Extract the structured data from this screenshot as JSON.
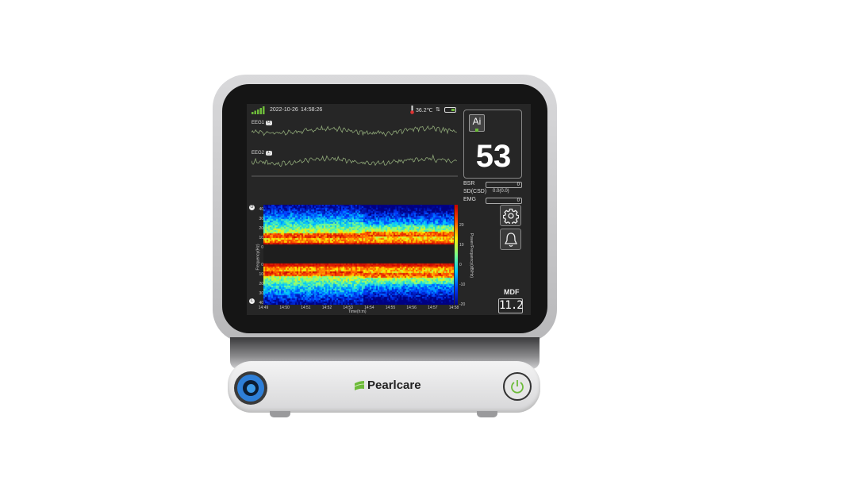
{
  "brand": {
    "name": "Pearlcare"
  },
  "status": {
    "date": "2022-10-26",
    "time": "14:58:26",
    "temperature": "36.2℃",
    "signal_icon": "signal-bars-icon",
    "battery_icon": "battery-icon"
  },
  "eeg": {
    "ch1": "EEG1",
    "ch1_badge": "Ⓞ",
    "ch2": "EEG2",
    "ch2_badge": "Ⓛ"
  },
  "index": {
    "ai_label": "Ai",
    "value": "53"
  },
  "params": {
    "bsr_label": "BSR",
    "bsr_value": "0",
    "sd_label": "SD(CSD)",
    "sd_value": "0.0(0.0)",
    "emg_label": "EMG",
    "emg_value": "0"
  },
  "mdf": {
    "label": "MDF",
    "value": "11.2"
  },
  "spectrogram": {
    "y_ticks_top": [
      "40",
      "30",
      "20",
      "10",
      "0"
    ],
    "y_ticks_bottom": [
      "0",
      "10",
      "20",
      "30",
      "40"
    ],
    "x_ticks": [
      "14:49",
      "14:50",
      "14:51",
      "14:52",
      "14:53",
      "14:54",
      "14:55",
      "14:56",
      "14:57",
      "14:58"
    ],
    "colorbar_ticks": [
      "20",
      "10",
      "0",
      "-10",
      "-20"
    ],
    "y_label": "Frequency(Hz)",
    "x_label": "Time(h:m)",
    "colorbar_label": "Power/Frequency(dB/Hz)"
  },
  "colors": {
    "wave": "#8fa878",
    "accent": "#6dbb3a",
    "port": "#2e7fd8"
  }
}
